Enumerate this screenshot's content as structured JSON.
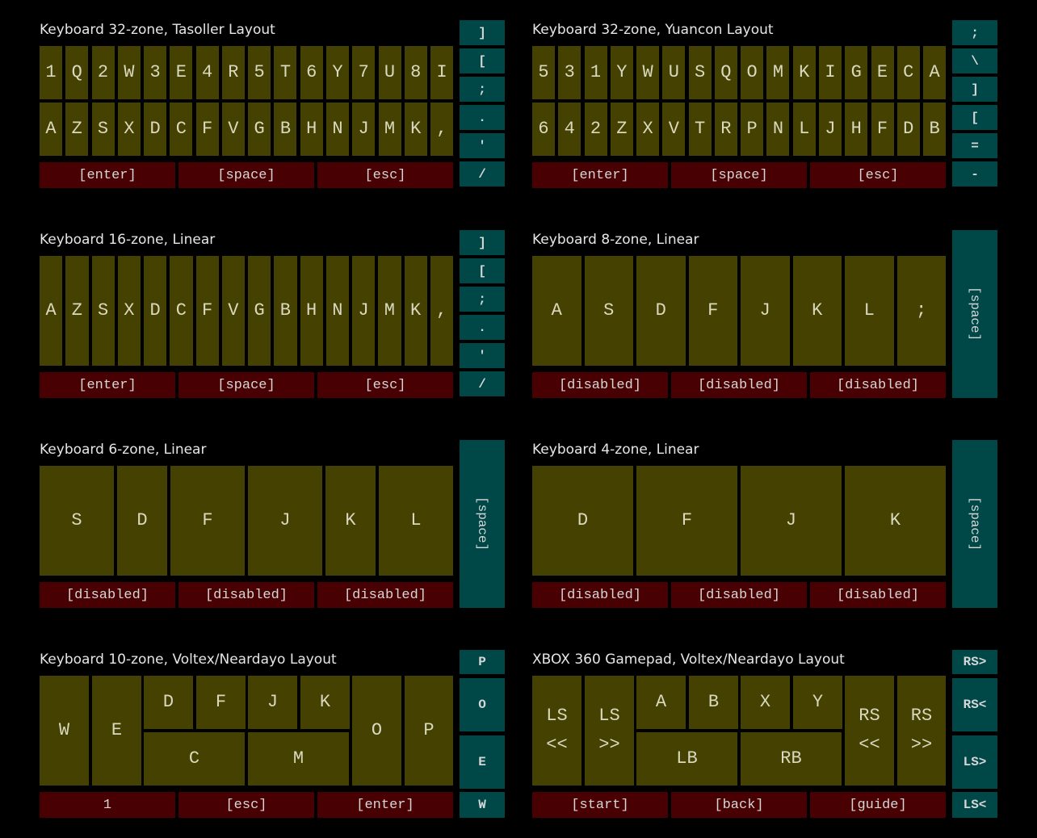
{
  "panels": [
    {
      "title": "Keyboard 32-zone, Tasoller Layout",
      "top": [
        "1",
        "Q",
        "2",
        "W",
        "3",
        "E",
        "4",
        "R",
        "5",
        "T",
        "6",
        "Y",
        "7",
        "U",
        "8",
        "I"
      ],
      "bottom": [
        "A",
        "Z",
        "S",
        "X",
        "D",
        "C",
        "F",
        "V",
        "G",
        "B",
        "H",
        "N",
        "J",
        "M",
        "K",
        ","
      ],
      "red": [
        "[enter]",
        "[space]",
        "[esc]"
      ],
      "side": [
        "]",
        "[",
        ";",
        ".",
        "'",
        "/"
      ]
    },
    {
      "title": "Keyboard 32-zone, Yuancon Layout",
      "top": [
        "5",
        "3",
        "1",
        "Y",
        "W",
        "U",
        "S",
        "Q",
        "O",
        "M",
        "K",
        "I",
        "G",
        "E",
        "C",
        "A"
      ],
      "bottom": [
        "6",
        "4",
        "2",
        "Z",
        "X",
        "V",
        "T",
        "R",
        "P",
        "N",
        "L",
        "J",
        "H",
        "F",
        "D",
        "B"
      ],
      "red": [
        "[enter]",
        "[space]",
        "[esc]"
      ],
      "side": [
        ";",
        "\\",
        "]",
        "[",
        "=",
        "-"
      ]
    },
    {
      "title": "Keyboard 16-zone, Linear",
      "keys": [
        "A",
        "Z",
        "S",
        "X",
        "D",
        "C",
        "F",
        "V",
        "G",
        "B",
        "H",
        "N",
        "J",
        "M",
        "K",
        ","
      ],
      "red": [
        "[enter]",
        "[space]",
        "[esc]"
      ],
      "side": [
        "]",
        "[",
        ";",
        ".",
        "'",
        "/"
      ]
    },
    {
      "title": "Keyboard 8-zone, Linear",
      "keys": [
        "A",
        "S",
        "D",
        "F",
        "J",
        "K",
        "L",
        ";"
      ],
      "red": [
        "[disabled]",
        "[disabled]",
        "[disabled]"
      ],
      "side": [
        "[space]"
      ]
    },
    {
      "title": "Keyboard 6-zone, Linear",
      "keys": [
        "S",
        "D",
        "F",
        "J",
        "K",
        "L"
      ],
      "red": [
        "[disabled]",
        "[disabled]",
        "[disabled]"
      ],
      "side": [
        "[space]"
      ]
    },
    {
      "title": "Keyboard 4-zone, Linear",
      "keys": [
        "D",
        "F",
        "J",
        "K"
      ],
      "red": [
        "[disabled]",
        "[disabled]",
        "[disabled]"
      ],
      "side": [
        "[space]"
      ]
    },
    {
      "title": "Keyboard 10-zone, Voltex/Neardayo Layout",
      "keys": [
        "W",
        "E",
        "D",
        "F",
        "J",
        "K",
        "C",
        "M",
        "O",
        "P"
      ],
      "red": [
        "1",
        "[esc]",
        "[enter]"
      ],
      "side": [
        "P",
        "O",
        "E",
        "W"
      ]
    },
    {
      "title": "XBOX 360 Gamepad, Voltex/Neardayo Layout",
      "keys": [
        "LS\n<<",
        "LS\n>>",
        "A",
        "B",
        "X",
        "Y",
        "LB",
        "RB",
        "RS\n<<",
        "RS\n>>"
      ],
      "red": [
        "[start]",
        "[back]",
        "[guide]"
      ],
      "side": [
        "RS>",
        "RS<",
        "LS>",
        "LS<"
      ]
    }
  ],
  "colors": {
    "zone": "#454100",
    "red": "#480002",
    "teal": "#004848"
  }
}
